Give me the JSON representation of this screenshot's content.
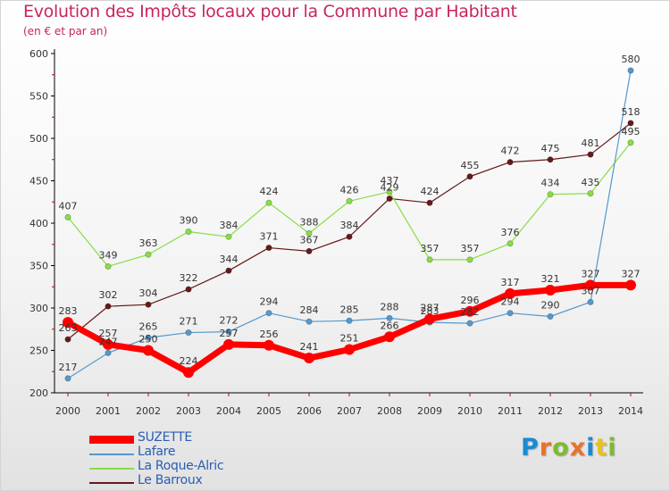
{
  "header": {
    "title": "Evolution des Impôts locaux pour la Commune par Habitant",
    "subtitle": "(en € et par an)"
  },
  "brand": {
    "text": "Proxiti",
    "letter_colors": [
      "#1a8ad4",
      "#e8732a",
      "#7dbb2f",
      "#e8732a",
      "#1a8ad4",
      "#e8c21c",
      "#7dbb2f"
    ]
  },
  "colors": {
    "suzette": "#ff0000",
    "lafare": "#5599cc",
    "la_roque_alric": "#88dd44",
    "le_barroux": "#661a1a",
    "axis": "#000000",
    "tick_marks": "#cc0000"
  },
  "chart_data": {
    "type": "line",
    "title": "Evolution des Impôts locaux pour la Commune par Habitant",
    "subtitle": "(en € et par an)",
    "x": [
      "2000",
      "2001",
      "2002",
      "2003",
      "2004",
      "2005",
      "2006",
      "2007",
      "2008",
      "2009",
      "2010",
      "2011",
      "2012",
      "2013",
      "2014"
    ],
    "ylim": [
      200,
      600
    ],
    "yticks": [
      200,
      250,
      300,
      350,
      400,
      450,
      500,
      550,
      600
    ],
    "grid": false,
    "legend_position": "bottom-left",
    "series": [
      {
        "name": "SUZETTE",
        "key": "suzette",
        "values": [
          283,
          257,
          250,
          224,
          257,
          256,
          241,
          251,
          266,
          287,
          296,
          317,
          321,
          327,
          327
        ],
        "labels": [
          "283",
          "257",
          "250",
          "224",
          "257",
          "256",
          "241",
          "251",
          "266",
          "287",
          "296",
          "317",
          "321",
          "327",
          "327"
        ]
      },
      {
        "name": "Lafare",
        "key": "lafare",
        "values": [
          217,
          247,
          265,
          271,
          272,
          294,
          284,
          285,
          288,
          283,
          282,
          294,
          290,
          307,
          580
        ],
        "labels": [
          "217",
          "247",
          "265",
          "271",
          "272",
          "294",
          "284",
          "285",
          "288",
          "283",
          "282",
          "294",
          "290",
          "307",
          "580"
        ]
      },
      {
        "name": "La Roque-Alric",
        "key": "la_roque_alric",
        "values": [
          407,
          349,
          363,
          390,
          384,
          424,
          388,
          426,
          437,
          357,
          357,
          376,
          434,
          435,
          495
        ],
        "labels": [
          "407",
          "349",
          "363",
          "390",
          "384",
          "424",
          "388",
          "426",
          "437",
          "357",
          "357",
          "376",
          "434",
          "435",
          "495"
        ]
      },
      {
        "name": "Le Barroux",
        "key": "le_barroux",
        "values": [
          263,
          302,
          304,
          322,
          344,
          371,
          367,
          384,
          429,
          424,
          455,
          472,
          475,
          481,
          518
        ],
        "labels": [
          "263",
          "302",
          "304",
          "322",
          "344",
          "371",
          "367",
          "384",
          "429",
          "424",
          "455",
          "472",
          "475",
          "481",
          "518"
        ]
      }
    ]
  }
}
